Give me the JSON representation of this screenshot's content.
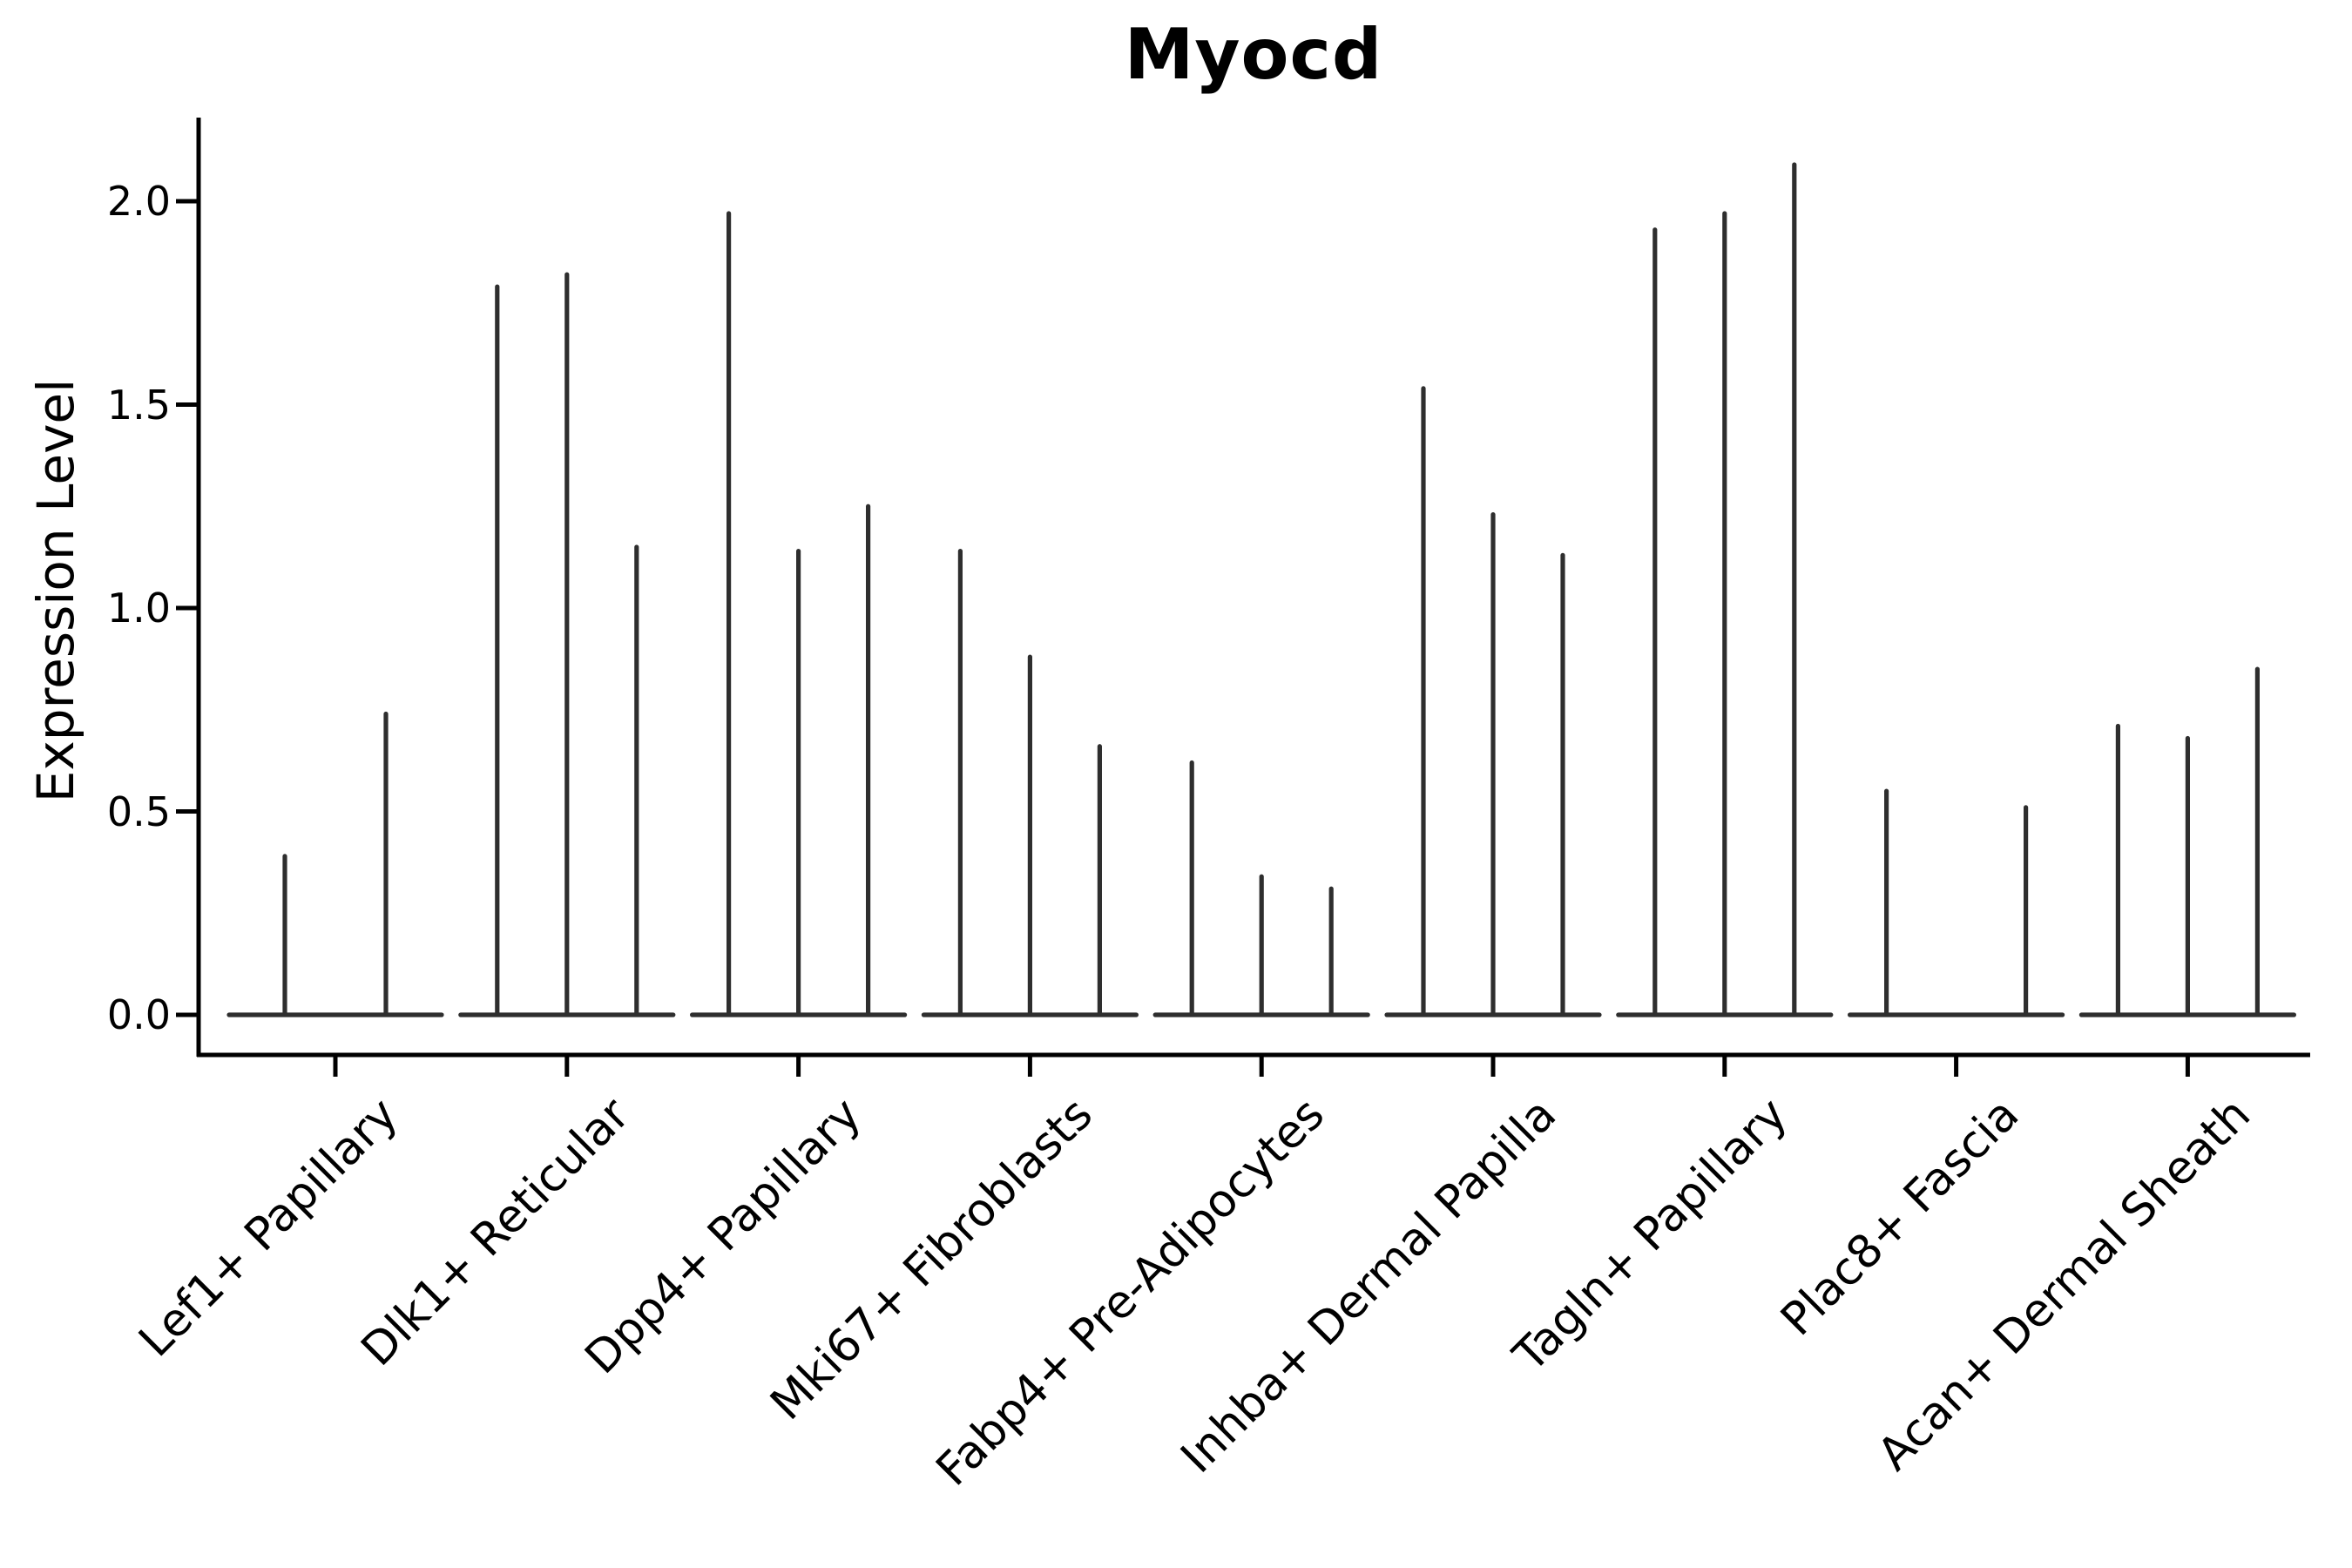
{
  "colors": {
    "background": "#ffffff",
    "axis": "#000000",
    "violin": "#2e2e2e",
    "text": "#000000"
  },
  "chart_data": {
    "type": "violin",
    "title": "Myocd",
    "ylabel": "Expression Level",
    "xlabel": "",
    "grid": false,
    "legend": "none",
    "ylim": [
      0.0,
      2.2
    ],
    "yticks": [
      0.0,
      0.5,
      1.0,
      1.5,
      2.0
    ],
    "ytick_labels": [
      "0.0",
      "0.5",
      "1.0",
      "1.5",
      "2.0"
    ],
    "categories": [
      "Lef1+ Papillary",
      "Dlk1+ Reticular",
      "Dpp4+ Papillary",
      "Mki67+ Fibroblasts",
      "Fabp4+ Pre-Adipocytes",
      "Inhba+ Dermal Papilla",
      "Tagln+ Papillary",
      "Plac8+ Fascia",
      "Acan+ Dermal Sheath"
    ],
    "violins": [
      {
        "category": "Lef1+ Papillary",
        "peaks": [
          0.39,
          0.74
        ]
      },
      {
        "category": "Dlk1+ Reticular",
        "peaks": [
          1.79,
          1.82,
          1.15
        ]
      },
      {
        "category": "Dpp4+ Papillary",
        "peaks": [
          1.97,
          1.14,
          1.25
        ]
      },
      {
        "category": "Mki67+ Fibroblasts",
        "peaks": [
          1.14,
          0.88,
          0.66
        ]
      },
      {
        "category": "Fabp4+ Pre-Adipocytes",
        "peaks": [
          0.62,
          0.34,
          0.31
        ]
      },
      {
        "category": "Inhba+ Dermal Papilla",
        "peaks": [
          1.54,
          1.23,
          1.13
        ]
      },
      {
        "category": "Tagln+ Papillary",
        "peaks": [
          1.93,
          1.97,
          2.09
        ]
      },
      {
        "category": "Plac8+ Fascia",
        "peaks": [
          0.55,
          0.0,
          0.51
        ]
      },
      {
        "category": "Acan+ Dermal Sheath",
        "peaks": [
          0.71,
          0.68,
          0.85
        ]
      }
    ],
    "notes": "Violin plot; each category shows thin density spikes rising from a flat base at expression 0. Peak value = top of each spike."
  }
}
